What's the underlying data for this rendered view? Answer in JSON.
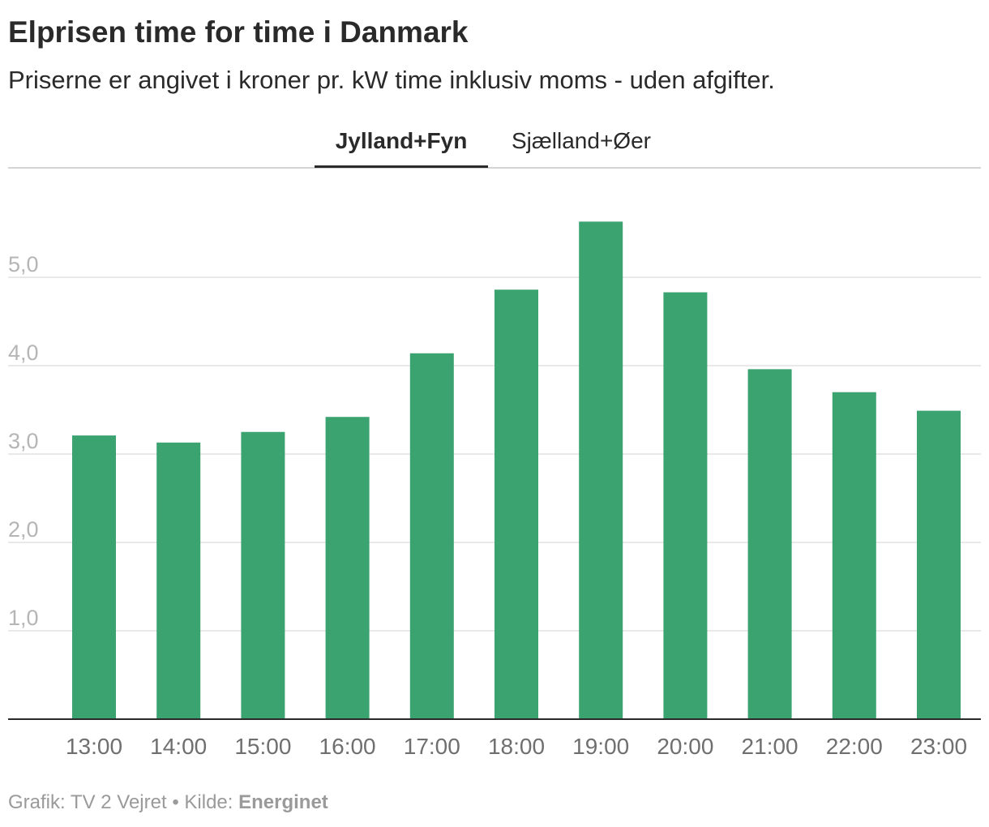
{
  "header": {
    "title": "Elprisen time for time i Danmark",
    "subtitle": "Priserne er angivet i kroner pr. kW time inklusiv moms - uden afgifter."
  },
  "tabs": [
    {
      "label": "Jylland+Fyn",
      "active": true
    },
    {
      "label": "Sjælland+Øer",
      "active": false
    }
  ],
  "footer": {
    "grafik": "Grafik: TV 2 Vejret",
    "separator": "•",
    "kilde_label": "Kilde:",
    "kilde": "Energinet"
  },
  "colors": {
    "bar": "#3ba370",
    "grid": "#e2e2e2",
    "tick_y": "#b5b5b5",
    "tick_x": "#6f6f6f",
    "baseline": "#2a2a2a"
  },
  "chart_data": {
    "type": "bar",
    "categories": [
      "13:00",
      "14:00",
      "15:00",
      "16:00",
      "17:00",
      "18:00",
      "19:00",
      "20:00",
      "21:00",
      "22:00",
      "23:00"
    ],
    "values": [
      3.21,
      3.13,
      3.25,
      3.42,
      4.14,
      4.86,
      5.63,
      4.83,
      3.96,
      3.7,
      3.49
    ],
    "yticks": [
      "1,0",
      "2,0",
      "3,0",
      "4,0",
      "5,0"
    ],
    "ytick_values": [
      1,
      2,
      3,
      4,
      5
    ],
    "ylim": [
      0,
      5.7
    ],
    "grid": true,
    "legend": "none"
  }
}
